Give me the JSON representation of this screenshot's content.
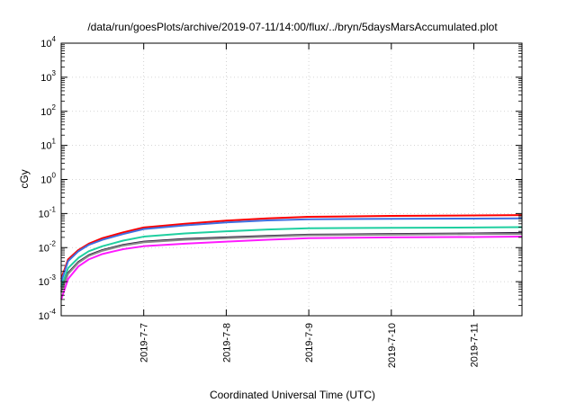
{
  "chart_data": {
    "type": "line",
    "title": "/data/run/goesPlots/archive/2019-07-11/14:00/flux/../bryn/5daysMarsAccumulated.plot",
    "xlabel": "Coordinated Universal Time (UTC)",
    "ylabel": "cGy",
    "y_scale": "log",
    "ylim": [
      0.0001,
      10000
    ],
    "xlim": [
      "2019-07-06 00:00",
      "2019-07-11 14:00"
    ],
    "x_ticks": [
      "2019-7-7",
      "2019-7-8",
      "2019-7-9",
      "2019-7-10",
      "2019-7-11"
    ],
    "y_ticks": [
      {
        "value": 0.0001,
        "base": "10",
        "exp": "-4"
      },
      {
        "value": 0.001,
        "base": "10",
        "exp": "-3"
      },
      {
        "value": 0.01,
        "base": "10",
        "exp": "-2"
      },
      {
        "value": 0.1,
        "base": "10",
        "exp": "-1"
      },
      {
        "value": 1,
        "base": "10",
        "exp": "0"
      },
      {
        "value": 10,
        "base": "10",
        "exp": "1"
      },
      {
        "value": 100,
        "base": "10",
        "exp": "2"
      },
      {
        "value": 1000,
        "base": "10",
        "exp": "3"
      },
      {
        "value": 10000,
        "base": "10",
        "exp": "4"
      }
    ],
    "grid": true,
    "legend": "none",
    "x_points": [
      "2019-07-06 00:00",
      "2019-07-06 02:00",
      "2019-07-06 05:00",
      "2019-07-06 08:00",
      "2019-07-06 12:00",
      "2019-07-06 18:00",
      "2019-07-07 00:00",
      "2019-07-07 12:00",
      "2019-07-08 00:00",
      "2019-07-08 12:00",
      "2019-07-09 00:00",
      "2019-07-10 00:00",
      "2019-07-11 00:00",
      "2019-07-11 14:00"
    ],
    "series": [
      {
        "color": "#ff0000",
        "values": [
          0.0012,
          0.0045,
          0.0085,
          0.013,
          0.019,
          0.028,
          0.039,
          0.05,
          0.062,
          0.072,
          0.08,
          0.085,
          0.088,
          0.09
        ]
      },
      {
        "color": "#3f6fe0",
        "values": [
          0.001,
          0.004,
          0.0078,
          0.012,
          0.017,
          0.025,
          0.035,
          0.045,
          0.055,
          0.063,
          0.068,
          0.07,
          0.071,
          0.072
        ]
      },
      {
        "color": "#1fcfa0",
        "values": [
          0.0007,
          0.0025,
          0.005,
          0.0078,
          0.011,
          0.016,
          0.021,
          0.026,
          0.03,
          0.034,
          0.037,
          0.038,
          0.039,
          0.04
        ]
      },
      {
        "color": "#2a1a3a",
        "values": [
          0.0005,
          0.0018,
          0.0038,
          0.006,
          0.0085,
          0.012,
          0.015,
          0.018,
          0.02,
          0.022,
          0.024,
          0.025,
          0.026,
          0.027
        ]
      },
      {
        "color": "#8a8a8a",
        "values": [
          0.0005,
          0.0017,
          0.0036,
          0.0057,
          0.0081,
          0.0115,
          0.0143,
          0.017,
          0.019,
          0.021,
          0.023,
          0.024,
          0.025,
          0.025
        ]
      },
      {
        "color": "#ff1aff",
        "values": [
          0.0003,
          0.0012,
          0.0028,
          0.0045,
          0.0065,
          0.009,
          0.011,
          0.013,
          0.015,
          0.017,
          0.019,
          0.02,
          0.0205,
          0.021
        ]
      }
    ]
  }
}
